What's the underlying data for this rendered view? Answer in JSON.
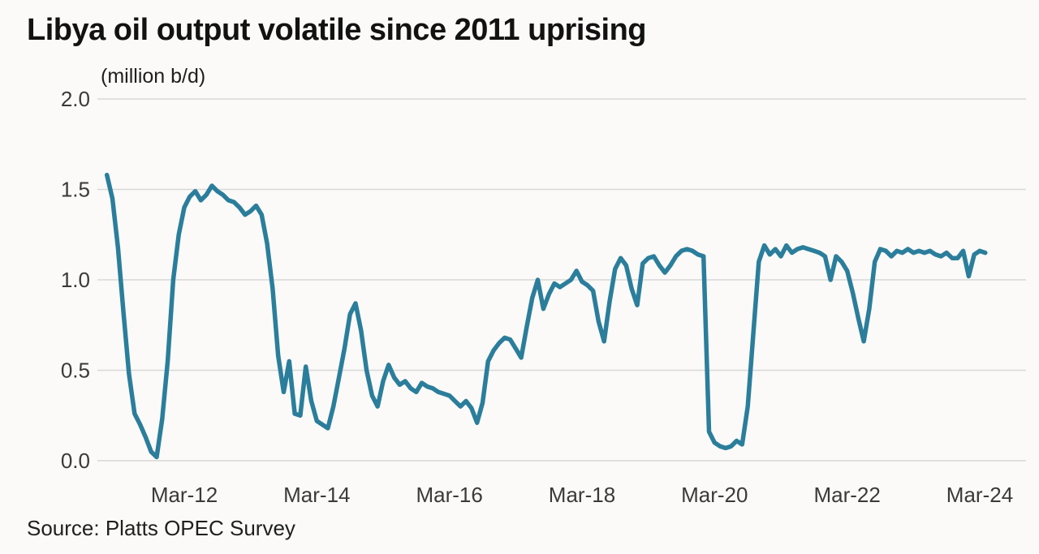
{
  "header": {
    "title": "Libya oil output volatile since 2011 uprising",
    "unit_label": "(million b/d)"
  },
  "source": {
    "text": "Source: Platts OPEC Survey"
  },
  "colors": {
    "line": "#2b7e9b",
    "grid": "#d7d7d7",
    "background": "#fbfaf8",
    "axis_text": "#3a3a3a"
  },
  "chart_data": {
    "type": "line",
    "title": "Libya oil output volatile since 2011 uprising",
    "ylabel": "(million b/d)",
    "xlabel": "",
    "ylim": [
      0,
      2.0
    ],
    "grid": "horizontal",
    "legend": "none",
    "y_ticks": [
      "0.0",
      "0.5",
      "1.0",
      "1.5",
      "2.0"
    ],
    "x_tick_labels": [
      "Mar-12",
      "Mar-14",
      "Mar-16",
      "Mar-18",
      "Mar-20",
      "Mar-22",
      "Mar-24"
    ],
    "x_tick_month_indices": [
      14,
      38,
      62,
      86,
      110,
      134,
      158
    ],
    "x_range": {
      "start": "Jan-2011",
      "end": "Apr-2024",
      "frequency": "monthly"
    },
    "series": [
      {
        "name": "Libya crude oil output (million b/d)",
        "values": [
          1.58,
          1.45,
          1.18,
          0.82,
          0.48,
          0.26,
          0.2,
          0.13,
          0.05,
          0.02,
          0.23,
          0.55,
          1.0,
          1.25,
          1.4,
          1.46,
          1.49,
          1.44,
          1.47,
          1.52,
          1.49,
          1.47,
          1.44,
          1.43,
          1.4,
          1.36,
          1.38,
          1.41,
          1.36,
          1.2,
          0.95,
          0.58,
          0.38,
          0.55,
          0.26,
          0.25,
          0.52,
          0.33,
          0.22,
          0.2,
          0.18,
          0.3,
          0.46,
          0.62,
          0.81,
          0.87,
          0.72,
          0.5,
          0.36,
          0.3,
          0.44,
          0.53,
          0.46,
          0.42,
          0.44,
          0.4,
          0.38,
          0.43,
          0.41,
          0.4,
          0.38,
          0.37,
          0.36,
          0.33,
          0.3,
          0.33,
          0.29,
          0.21,
          0.32,
          0.55,
          0.61,
          0.65,
          0.68,
          0.67,
          0.62,
          0.57,
          0.74,
          0.9,
          1.0,
          0.84,
          0.92,
          0.98,
          0.96,
          0.98,
          1.0,
          1.05,
          0.99,
          0.97,
          0.94,
          0.77,
          0.66,
          0.88,
          1.06,
          1.12,
          1.08,
          0.95,
          0.86,
          1.09,
          1.12,
          1.13,
          1.08,
          1.04,
          1.08,
          1.13,
          1.16,
          1.17,
          1.16,
          1.14,
          1.13,
          0.16,
          0.1,
          0.08,
          0.07,
          0.08,
          0.11,
          0.09,
          0.3,
          0.7,
          1.1,
          1.19,
          1.14,
          1.17,
          1.13,
          1.19,
          1.15,
          1.17,
          1.18,
          1.17,
          1.16,
          1.15,
          1.13,
          1.0,
          1.13,
          1.1,
          1.05,
          0.93,
          0.79,
          0.66,
          0.84,
          1.1,
          1.17,
          1.16,
          1.13,
          1.16,
          1.15,
          1.17,
          1.15,
          1.16,
          1.15,
          1.16,
          1.14,
          1.13,
          1.15,
          1.12,
          1.12,
          1.16,
          1.02,
          1.14,
          1.16,
          1.15
        ]
      }
    ]
  }
}
